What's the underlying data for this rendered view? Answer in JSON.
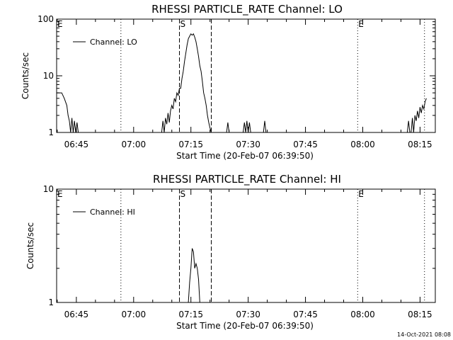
{
  "footer": {
    "timestamp": "14-Oct-2021 08:08"
  },
  "chart_data": [
    {
      "type": "line",
      "title": "RHESSI PARTICLE_RATE Channel: LO",
      "xlabel": "Start Time (20-Feb-07 06:39:50)",
      "ylabel": "Counts/sec",
      "yscale": "log",
      "ylim": [
        1,
        100
      ],
      "ytick_labels": [
        "1",
        "10",
        "100"
      ],
      "ytick_values": [
        1,
        10,
        100
      ],
      "xtick_labels": [
        "06:45",
        "07:00",
        "07:15",
        "07:30",
        "07:45",
        "08:00",
        "08:15"
      ],
      "xtick_values": [
        "06:45",
        "07:00",
        "07:15",
        "07:30",
        "07:45",
        "08:00",
        "08:15"
      ],
      "xlim": [
        "06:39:50",
        "08:19:00"
      ],
      "legend": {
        "label": "Channel: LO",
        "placement": "top-left"
      },
      "markers": [
        {
          "label": "E",
          "time": "06:39:50",
          "style": "dotted"
        },
        {
          "label": "",
          "time": "06:56:40",
          "style": "dotted"
        },
        {
          "label": "S",
          "time": "07:12:00",
          "style": "dashed"
        },
        {
          "label": "",
          "time": "07:20:20",
          "style": "dashed"
        },
        {
          "label": "E",
          "time": "07:58:40",
          "style": "dotted"
        },
        {
          "label": "",
          "time": "08:16:10",
          "style": "dotted"
        }
      ],
      "series": [
        {
          "name": "Channel: LO",
          "segments": [
            {
              "x": [
                "06:39:50",
                "06:40:30",
                "06:41:10",
                "06:41:50",
                "06:42:30",
                "06:42:50",
                "06:43:10",
                "06:43:30",
                "06:43:50",
                "06:44:10",
                "06:44:30",
                "06:44:50",
                "06:45:10",
                "06:45:30",
                "06:45:50"
              ],
              "y": [
                5,
                5,
                5,
                4,
                3,
                2,
                1.6,
                1,
                1.8,
                1,
                1.6,
                1,
                1.5,
                1,
                1
              ]
            },
            {
              "x": [
                "07:07:20",
                "07:07:40",
                "07:08:00",
                "07:08:20",
                "07:08:40",
                "07:09:00",
                "07:09:20",
                "07:09:40",
                "07:10:00",
                "07:10:20",
                "07:10:40",
                "07:11:00",
                "07:11:20",
                "07:11:40",
                "07:12:00",
                "07:12:20",
                "07:12:40",
                "07:13:00",
                "07:13:20",
                "07:13:40",
                "07:14:00",
                "07:14:20",
                "07:14:40",
                "07:15:00",
                "07:15:20",
                "07:15:40",
                "07:16:00",
                "07:16:20",
                "07:16:40",
                "07:17:00",
                "07:17:20",
                "07:17:40",
                "07:18:00",
                "07:18:20",
                "07:18:40",
                "07:19:00",
                "07:19:20",
                "07:19:40",
                "07:20:00",
                "07:20:20",
                "07:20:40",
                "07:21:00",
                "07:21:20",
                "07:21:40",
                "07:22:00"
              ],
              "y": [
                1,
                1.6,
                1,
                1.8,
                1.4,
                2.2,
                1.5,
                2.4,
                3,
                2.6,
                4,
                3.5,
                5,
                4.5,
                6,
                6,
                9,
                12,
                18,
                25,
                35,
                45,
                50,
                55,
                52,
                55,
                48,
                40,
                30,
                22,
                15,
                12,
                8,
                5,
                4,
                3,
                2,
                1.5,
                1.2,
                1,
                1,
                1,
                1,
                1,
                1
              ]
            },
            {
              "x": [
                "07:24:20",
                "07:24:40",
                "07:25:00"
              ],
              "y": [
                1,
                1.5,
                1
              ]
            },
            {
              "x": [
                "07:28:40",
                "07:29:00",
                "07:29:20",
                "07:29:40",
                "07:30:00",
                "07:30:20",
                "07:30:40"
              ],
              "y": [
                1,
                1.5,
                1,
                1.6,
                1,
                1.5,
                1
              ]
            },
            {
              "x": [
                "07:34:00",
                "07:34:20",
                "07:34:40"
              ],
              "y": [
                1,
                1.6,
                1
              ]
            },
            {
              "x": [
                "08:11:40",
                "08:12:00",
                "08:12:20",
                "08:12:40",
                "08:13:00",
                "08:13:20",
                "08:13:40",
                "08:14:00",
                "08:14:20",
                "08:14:40",
                "08:15:00",
                "08:15:20",
                "08:15:40",
                "08:16:00",
                "08:16:20",
                "08:16:40"
              ],
              "y": [
                1,
                1.6,
                1,
                1,
                1.8,
                1,
                2,
                1.6,
                2.4,
                1.8,
                2.8,
                2.2,
                3,
                2.6,
                3.5,
                4
              ]
            }
          ]
        }
      ]
    },
    {
      "type": "line",
      "title": "RHESSI PARTICLE_RATE Channel: HI",
      "xlabel": "Start Time (20-Feb-07 06:39:50)",
      "ylabel": "Counts/sec",
      "yscale": "log",
      "ylim": [
        1,
        10
      ],
      "ytick_labels": [
        "1",
        "10"
      ],
      "ytick_values": [
        1,
        10
      ],
      "xtick_labels": [
        "06:45",
        "07:00",
        "07:15",
        "07:30",
        "07:45",
        "08:00",
        "08:15"
      ],
      "xtick_values": [
        "06:45",
        "07:00",
        "07:15",
        "07:30",
        "07:45",
        "08:00",
        "08:15"
      ],
      "xlim": [
        "06:39:50",
        "08:19:00"
      ],
      "legend": {
        "label": "Channel: HI",
        "placement": "top-left"
      },
      "markers": [
        {
          "label": "E",
          "time": "06:39:50",
          "style": "dotted"
        },
        {
          "label": "",
          "time": "06:56:40",
          "style": "dotted"
        },
        {
          "label": "S",
          "time": "07:12:00",
          "style": "dashed"
        },
        {
          "label": "",
          "time": "07:20:20",
          "style": "dashed"
        },
        {
          "label": "E",
          "time": "07:58:40",
          "style": "dotted"
        },
        {
          "label": "",
          "time": "08:16:10",
          "style": "dotted"
        }
      ],
      "series": [
        {
          "name": "Channel: HI",
          "segments": [
            {
              "x": [
                "07:14:20",
                "07:14:40",
                "07:15:00",
                "07:15:20",
                "07:15:40",
                "07:16:00",
                "07:16:20",
                "07:16:40",
                "07:17:00",
                "07:17:20"
              ],
              "y": [
                1,
                1.5,
                2,
                3,
                2.8,
                2,
                2.2,
                2,
                1.6,
                1
              ]
            }
          ]
        }
      ]
    }
  ]
}
